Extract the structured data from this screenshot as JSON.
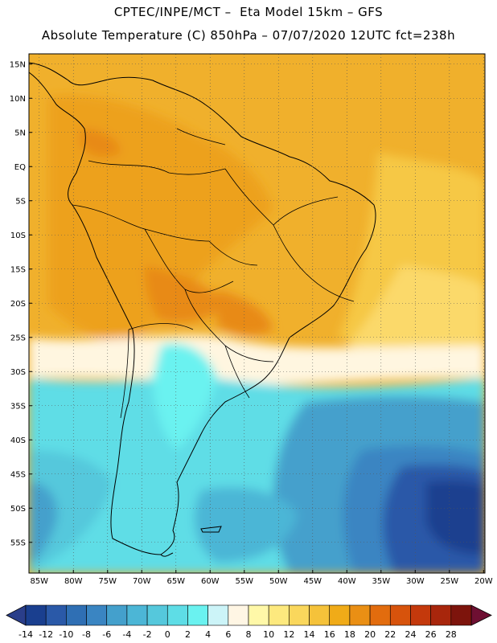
{
  "header": {
    "line1": "CPTEC/INPE/MCT –  Eta Model 15km – GFS",
    "line2": "Absolute Temperature (C) 850hPa – 07/07/2020 12UTC fct=238h"
  },
  "map": {
    "latitude_labels": [
      "15N",
      "10N",
      "5N",
      "EQ",
      "5S",
      "10S",
      "15S",
      "20S",
      "25S",
      "30S",
      "35S",
      "40S",
      "45S",
      "50S",
      "55S"
    ],
    "latitude_values": [
      15,
      10,
      5,
      0,
      -5,
      -10,
      -15,
      -20,
      -25,
      -30,
      -35,
      -40,
      -45,
      -50,
      -55
    ],
    "longitude_labels": [
      "85W",
      "80W",
      "75W",
      "70W",
      "65W",
      "60W",
      "55W",
      "50W",
      "45W",
      "40W",
      "35W",
      "30W",
      "25W",
      "20W"
    ],
    "longitude_values": [
      -85,
      -80,
      -75,
      -70,
      -65,
      -60,
      -55,
      -50,
      -45,
      -40,
      -35,
      -30,
      -25,
      -20
    ]
  },
  "colorbar": {
    "labels": [
      "-14",
      "-12",
      "-10",
      "-8",
      "-6",
      "-4",
      "-2",
      "0",
      "2",
      "4",
      "6",
      "8",
      "10",
      "12",
      "14",
      "16",
      "18",
      "20",
      "22",
      "24",
      "26",
      "28"
    ],
    "colors": [
      "#1a3f8f",
      "#2a59a8",
      "#2f6fb4",
      "#3a85c2",
      "#44a0cc",
      "#4cb6d6",
      "#55c8dc",
      "#5edde6",
      "#6af2f0",
      "#ccf4f8",
      "#fff6e4",
      "#fff8a8",
      "#fde97e",
      "#fad75c",
      "#f5c23a",
      "#f0ab18",
      "#ea8f14",
      "#e26c0e",
      "#d7530c",
      "#c4390c",
      "#a8260c",
      "#7d140c"
    ],
    "under_color": "#2a3e8a",
    "over_color": "#6e0f32"
  }
}
